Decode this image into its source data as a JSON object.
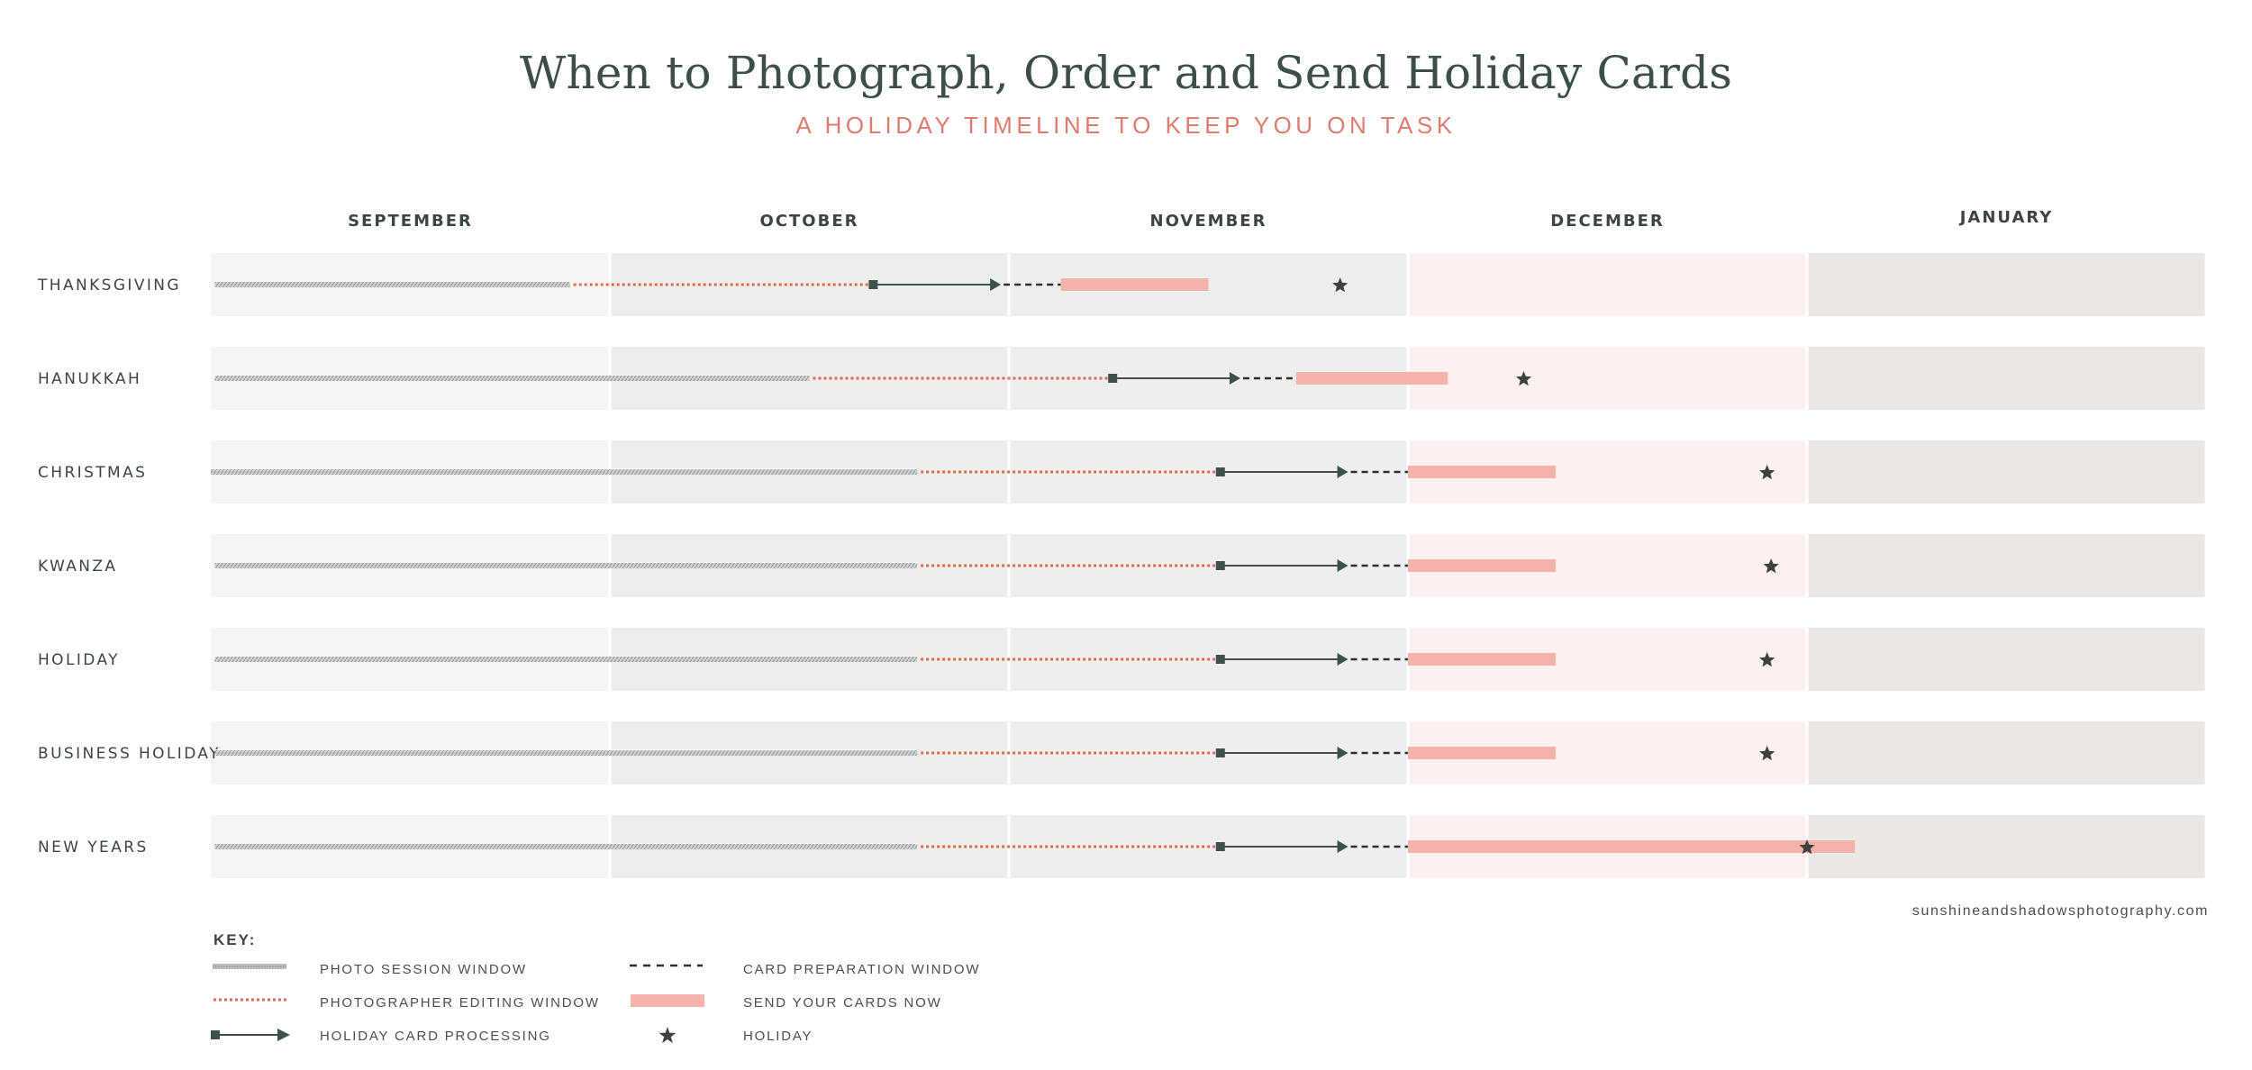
{
  "title": "When to Photograph, Order and Send Holiday Cards",
  "subtitle": "A HOLIDAY TIMELINE TO KEEP YOU ON TASK",
  "source": "sunshineandshadowsphotography.com",
  "colors": {
    "title": "#3d4e48",
    "subtitle": "#e07b6f",
    "photo_session": "#b5b7b5",
    "editing": "#e06a55",
    "processing": "#3e524b",
    "preparation": "#2b2f2e",
    "send_now": "#f4b3aa",
    "holiday_star": "#3d4240"
  },
  "chart_data": {
    "type": "timeline",
    "months": [
      "SEPTEMBER",
      "OCTOBER",
      "NOVEMBER",
      "DECEMBER",
      "JANUARY"
    ],
    "unit": "month index (0 = start of September, 5 = end of January)",
    "rows": [
      {
        "name": "THANKSGIVING",
        "photo": [
          0.01,
          0.9
        ],
        "edit": [
          0.9,
          1.66
        ],
        "process": [
          1.66,
          1.98
        ],
        "prep": [
          1.98,
          2.13
        ],
        "send": [
          2.13,
          2.5
        ],
        "holiday": 2.83
      },
      {
        "name": "HANUKKAH",
        "photo": [
          0.01,
          1.5
        ],
        "edit": [
          1.5,
          2.26
        ],
        "process": [
          2.26,
          2.58
        ],
        "prep": [
          2.58,
          2.72
        ],
        "send": [
          2.72,
          3.1
        ],
        "holiday": 3.29
      },
      {
        "name": "CHRISTMAS",
        "photo": [
          0.0,
          1.77
        ],
        "edit": [
          1.77,
          2.53
        ],
        "process": [
          2.53,
          2.85
        ],
        "prep": [
          2.85,
          3.0
        ],
        "send": [
          3.0,
          3.37
        ],
        "holiday": 3.9
      },
      {
        "name": "KWANZA",
        "photo": [
          0.01,
          1.77
        ],
        "edit": [
          1.77,
          2.53
        ],
        "process": [
          2.53,
          2.85
        ],
        "prep": [
          2.85,
          3.0
        ],
        "send": [
          3.0,
          3.37
        ],
        "holiday": 3.91
      },
      {
        "name": "HOLIDAY",
        "photo": [
          0.01,
          1.77
        ],
        "edit": [
          1.77,
          2.53
        ],
        "process": [
          2.53,
          2.85
        ],
        "prep": [
          2.85,
          3.0
        ],
        "send": [
          3.0,
          3.37
        ],
        "holiday": 3.9
      },
      {
        "name": "BUSINESS HOLIDAY",
        "photo": [
          0.01,
          1.77
        ],
        "edit": [
          1.77,
          2.53
        ],
        "process": [
          2.53,
          2.85
        ],
        "prep": [
          2.85,
          3.0
        ],
        "send": [
          3.0,
          3.37
        ],
        "holiday": 3.9
      },
      {
        "name": "NEW YEARS",
        "photo": [
          0.01,
          1.77
        ],
        "edit": [
          1.77,
          2.53
        ],
        "process": [
          2.53,
          2.85
        ],
        "prep": [
          2.85,
          3.0
        ],
        "send": [
          3.0,
          4.12
        ],
        "holiday": 4.0
      }
    ]
  },
  "key": {
    "title": "KEY:",
    "items": [
      {
        "id": "photo",
        "label": "PHOTO SESSION WINDOW"
      },
      {
        "id": "edit",
        "label": "PHOTOGRAPHER EDITING WINDOW"
      },
      {
        "id": "process",
        "label": "HOLIDAY CARD PROCESSING"
      },
      {
        "id": "prep",
        "label": "CARD PREPARATION WINDOW"
      },
      {
        "id": "send",
        "label": "SEND YOUR CARDS NOW"
      },
      {
        "id": "holiday",
        "label": "HOLIDAY"
      }
    ]
  }
}
